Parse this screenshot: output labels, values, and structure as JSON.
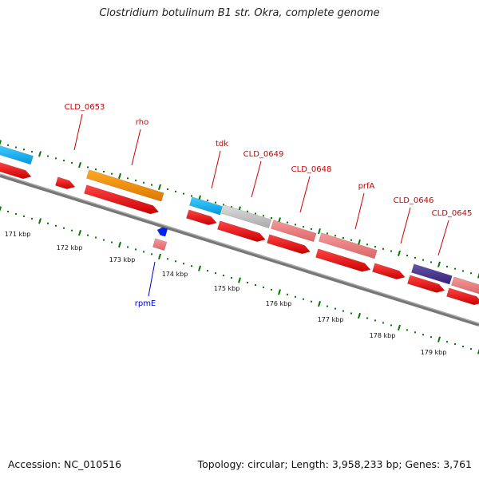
{
  "title": "Clostridium botulinum B1 str. Okra, complete genome",
  "footer": {
    "accession": "Accession: NC_010516",
    "summary": "Topology: circular; Length: 3,958,233 bp; Genes: 3,761"
  },
  "ticks": [
    {
      "label": "171 kbp"
    },
    {
      "label": "172 kbp"
    },
    {
      "label": "173 kbp"
    },
    {
      "label": "174 kbp"
    },
    {
      "label": "175 kbp"
    },
    {
      "label": "176 kbp"
    },
    {
      "label": "177 kbp"
    },
    {
      "label": "178 kbp"
    },
    {
      "label": "179 kbp"
    }
  ],
  "gene_labels": [
    {
      "name": "CLD_0653",
      "color": "#cc0000"
    },
    {
      "name": "rho",
      "color": "#cc0000"
    },
    {
      "name": "tdk",
      "color": "#cc0000"
    },
    {
      "name": "CLD_0649",
      "color": "#cc0000"
    },
    {
      "name": "CLD_0648",
      "color": "#cc0000"
    },
    {
      "name": "prfA",
      "color": "#cc0000"
    },
    {
      "name": "CLD_0646",
      "color": "#cc0000"
    },
    {
      "name": "CLD_0645",
      "color": "#cc0000"
    },
    {
      "name": "rpmE",
      "color": "#0000cc"
    }
  ],
  "colors": {
    "cds": "#ee0000",
    "rrna_blue": "#00aaee",
    "orange": "#ee8800",
    "gray": "#bbbbbb",
    "pink": "#ee7777",
    "navy": "#443388",
    "dots": "#007700",
    "backbone": "#888888"
  }
}
